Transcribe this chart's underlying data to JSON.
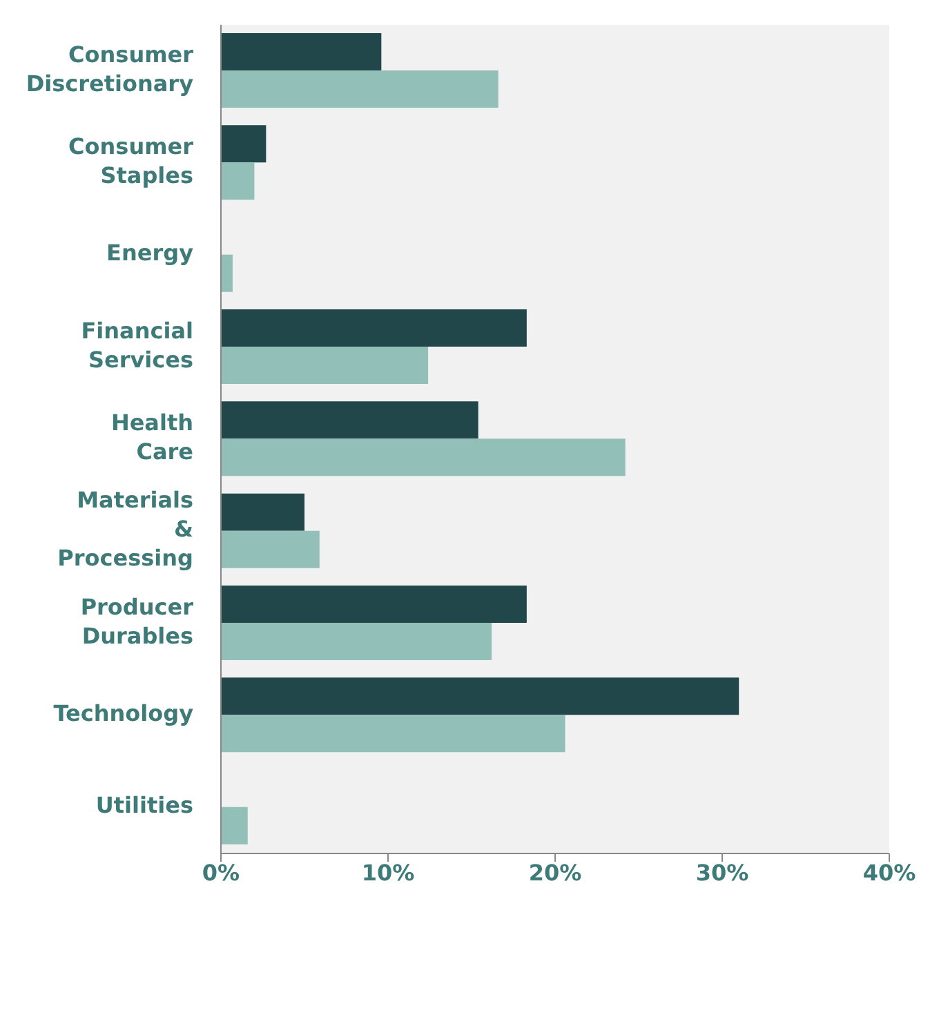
{
  "chart_data": {
    "type": "bar",
    "orientation": "horizontal",
    "categories": [
      "Consumer Discretionary",
      "Consumer Staples",
      "Energy",
      "Financial Services",
      "Health Care",
      "Materials & Processing",
      "Producer Durables",
      "Technology",
      "Utilities"
    ],
    "series": [
      {
        "color": "#22474a",
        "values": [
          9.6,
          2.7,
          null,
          18.3,
          15.4,
          5.0,
          18.3,
          31.0,
          null
        ]
      },
      {
        "color": "#93bfb9",
        "values": [
          16.6,
          2.0,
          0.7,
          12.4,
          24.2,
          5.9,
          16.2,
          20.6,
          1.6
        ]
      }
    ],
    "xlim": [
      0,
      40
    ],
    "xticks": [
      {
        "value": 0,
        "label": "0%"
      },
      {
        "value": 10,
        "label": "10%"
      },
      {
        "value": 20,
        "label": "20%"
      },
      {
        "value": 30,
        "label": "30%"
      },
      {
        "value": 40,
        "label": "40%"
      }
    ],
    "grid": false,
    "legend": false
  }
}
